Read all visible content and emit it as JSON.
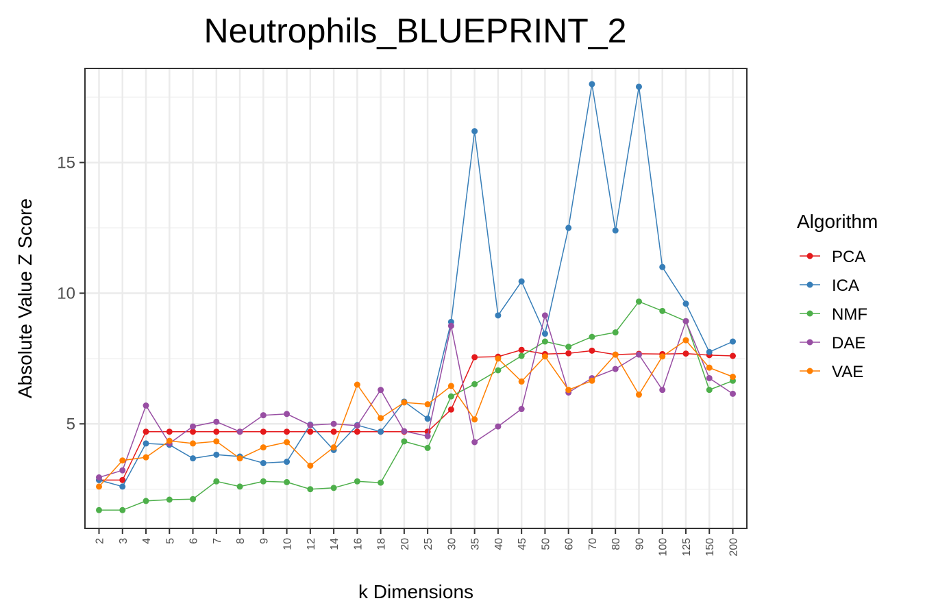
{
  "chart_data": {
    "type": "line",
    "title": "Neutrophils_BLUEPRINT_2",
    "xlabel": "k Dimensions",
    "ylabel": "Absolute Value Z Score",
    "categories": [
      "2",
      "3",
      "4",
      "5",
      "6",
      "7",
      "8",
      "9",
      "10",
      "12",
      "14",
      "16",
      "18",
      "20",
      "25",
      "30",
      "35",
      "40",
      "45",
      "50",
      "60",
      "70",
      "80",
      "90",
      "100",
      "125",
      "150",
      "200"
    ],
    "yticks": [
      5,
      10,
      15
    ],
    "ylim": [
      1.0,
      18.6
    ],
    "grid": true,
    "legend": {
      "title": "Algorithm",
      "position": "right"
    },
    "series": [
      {
        "name": "PCA",
        "color": "#E41A1C",
        "values": [
          2.85,
          2.85,
          4.7,
          4.7,
          4.7,
          4.7,
          4.7,
          4.7,
          4.7,
          4.7,
          4.7,
          4.7,
          4.7,
          4.7,
          4.7,
          5.55,
          7.55,
          7.57,
          7.83,
          7.67,
          7.7,
          7.8,
          7.65,
          7.68,
          7.67,
          7.69,
          7.63,
          7.6
        ]
      },
      {
        "name": "ICA",
        "color": "#377EB8",
        "values": [
          2.85,
          2.6,
          4.25,
          4.2,
          3.68,
          3.82,
          3.75,
          3.5,
          3.55,
          4.97,
          4.0,
          4.95,
          4.7,
          5.85,
          5.2,
          8.9,
          16.2,
          9.15,
          10.45,
          8.45,
          12.5,
          18.0,
          12.4,
          17.9,
          11.0,
          9.6,
          7.75,
          8.15
        ]
      },
      {
        "name": "NMF",
        "color": "#4DAF4A",
        "values": [
          1.7,
          1.7,
          2.05,
          2.1,
          2.12,
          2.8,
          2.6,
          2.8,
          2.77,
          2.5,
          2.55,
          2.8,
          2.75,
          4.33,
          4.08,
          6.05,
          6.52,
          7.05,
          7.6,
          8.15,
          7.95,
          8.33,
          8.5,
          9.68,
          9.32,
          8.93,
          6.3,
          6.65
        ]
      },
      {
        "name": "DAE",
        "color": "#984EA3",
        "values": [
          2.95,
          3.22,
          5.7,
          4.25,
          4.9,
          5.08,
          4.7,
          5.33,
          5.38,
          4.95,
          5.0,
          4.93,
          6.3,
          4.72,
          4.53,
          8.75,
          4.3,
          4.9,
          5.57,
          9.15,
          6.2,
          6.75,
          7.1,
          7.65,
          6.3,
          8.93,
          6.75,
          6.15
        ]
      },
      {
        "name": "VAE",
        "color": "#FF7F00",
        "values": [
          2.6,
          3.6,
          3.72,
          4.35,
          4.25,
          4.33,
          3.68,
          4.1,
          4.3,
          3.4,
          4.1,
          6.5,
          5.22,
          5.82,
          5.75,
          6.45,
          5.17,
          7.5,
          6.62,
          7.58,
          6.3,
          6.65,
          7.65,
          6.12,
          7.58,
          8.2,
          7.15,
          6.8
        ]
      }
    ]
  }
}
